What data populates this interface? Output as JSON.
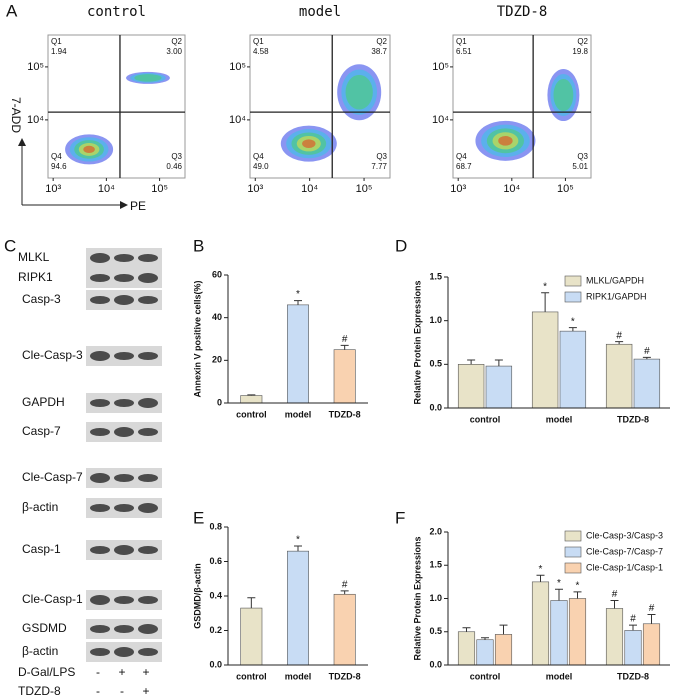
{
  "panel_labels": [
    "A",
    "B",
    "C",
    "D",
    "E",
    "F"
  ],
  "blot": {
    "rows": [
      "MLKL",
      "RIPK1",
      "Casp-3",
      "Cle-Casp-3",
      "GAPDH",
      "Casp-7",
      "Cle-Casp-7",
      "β-actin",
      "Casp-1",
      "Cle-Casp-1",
      "GSDMD",
      "β-actin"
    ],
    "treatments": [
      {
        "name": "D-Gal/LPS",
        "signs": [
          "-",
          "+",
          "+"
        ]
      },
      {
        "name": "TDZD-8",
        "signs": [
          "-",
          "-",
          "+"
        ]
      }
    ]
  },
  "chart_data": [
    {
      "type": "flow",
      "x_label": "PE",
      "y_label": "7-ADD",
      "xscale": "log",
      "yscale": "log",
      "xlim": [
        800,
        300000
      ],
      "ylim": [
        800,
        400000
      ],
      "xticks": [
        {
          "value": 1000,
          "label": "10³"
        },
        {
          "value": 10000,
          "label": "10⁴"
        },
        {
          "value": 100000,
          "label": "10⁵"
        }
      ],
      "yticks": [
        {
          "value": 10000,
          "label": "10⁴"
        },
        {
          "value": 100000,
          "label": "10⁵"
        }
      ],
      "quadrant_names": [
        "Q1",
        "Q2",
        "Q3",
        "Q4"
      ],
      "plots": [
        {
          "title": "control",
          "gate_x": 18000,
          "gate_y": 14000,
          "values": [
            1.94,
            3.0,
            0.46,
            94.6
          ],
          "value_labels": [
            "1.94",
            "3.00",
            "0.46",
            "94.6"
          ]
        },
        {
          "title": "model",
          "gate_x": 26000,
          "gate_y": 14000,
          "values": [
            4.58,
            38.7,
            7.77,
            49.0
          ],
          "value_labels": [
            "4.58",
            "38.7",
            "7.77",
            "49.0"
          ]
        },
        {
          "title": "TDZD-8",
          "gate_x": 25000,
          "gate_y": 14000,
          "values": [
            6.51,
            19.8,
            5.01,
            68.7
          ],
          "value_labels": [
            "6.51",
            "19.8",
            "5.01",
            "68.7"
          ]
        }
      ]
    },
    {
      "type": "bar",
      "y_label": "Annexin V positive cells(%)",
      "categories": [
        "control",
        "model",
        "TDZD-8"
      ],
      "values": [
        3.5,
        46,
        25
      ],
      "errors": [
        0.3,
        2,
        2
      ],
      "marks": [
        null,
        "*",
        "#"
      ],
      "colors": [
        "#e8e3c8",
        "#c8dcf4",
        "#f9d2b0"
      ],
      "ylim": [
        0,
        60
      ],
      "yticks": [
        0,
        20,
        40,
        60
      ]
    },
    {
      "type": "bar",
      "y_label": "Relative Protein Expressions",
      "categories": [
        "control",
        "model",
        "TDZD-8"
      ],
      "series": [
        {
          "name": "MLKL/GAPDH",
          "color": "#e8e3c8",
          "values": [
            0.5,
            1.1,
            0.73
          ],
          "errors": [
            0.05,
            0.22,
            0.03
          ],
          "marks": [
            null,
            "*",
            "#"
          ]
        },
        {
          "name": "RIPK1/GAPDH",
          "color": "#c8dcf4",
          "values": [
            0.48,
            0.88,
            0.56
          ],
          "errors": [
            0.07,
            0.04,
            0.02
          ],
          "marks": [
            null,
            "*",
            "#"
          ]
        }
      ],
      "ylim": [
        0,
        1.5
      ],
      "yticks": [
        {
          "value": 0,
          "label": "0.0"
        },
        0.5,
        {
          "value": 1,
          "label": "1.0"
        },
        1.5
      ],
      "legend": "upper right"
    },
    {
      "type": "bar",
      "y_label": "GSDMD/β-actin",
      "categories": [
        "control",
        "model",
        "TDZD-8"
      ],
      "values": [
        0.33,
        0.66,
        0.41
      ],
      "errors": [
        0.06,
        0.03,
        0.02
      ],
      "marks": [
        null,
        "*",
        "#"
      ],
      "colors": [
        "#e8e3c8",
        "#c8dcf4",
        "#f9d2b0"
      ],
      "ylim": [
        0,
        0.8
      ],
      "yticks": [
        {
          "value": 0,
          "label": "0.0"
        },
        0.2,
        0.4,
        0.6,
        0.8
      ]
    },
    {
      "type": "bar",
      "y_label": "Relative Protein Expressions",
      "categories": [
        "control",
        "model",
        "TDZD-8"
      ],
      "series": [
        {
          "name": "Cle-Casp-3/Casp-3",
          "color": "#e8e3c8",
          "values": [
            0.5,
            1.25,
            0.85
          ],
          "errors": [
            0.06,
            0.1,
            0.12
          ],
          "marks": [
            null,
            "*",
            "#"
          ]
        },
        {
          "name": "Cle-Casp-7/Casp-7",
          "color": "#c8dcf4",
          "values": [
            0.38,
            0.97,
            0.52
          ],
          "errors": [
            0.03,
            0.17,
            0.08
          ],
          "marks": [
            null,
            "*",
            "#"
          ]
        },
        {
          "name": "Cle-Casp-1/Casp-1",
          "color": "#f9d2b0",
          "values": [
            0.46,
            1.0,
            0.62
          ],
          "errors": [
            0.14,
            0.1,
            0.14
          ],
          "marks": [
            null,
            "*",
            "#"
          ]
        }
      ],
      "ylim": [
        0,
        2
      ],
      "yticks": [
        {
          "value": 0,
          "label": "0.0"
        },
        0.5,
        {
          "value": 1,
          "label": "1.0"
        },
        1.5,
        {
          "value": 2,
          "label": "2.0"
        }
      ],
      "legend": "upper right"
    }
  ]
}
